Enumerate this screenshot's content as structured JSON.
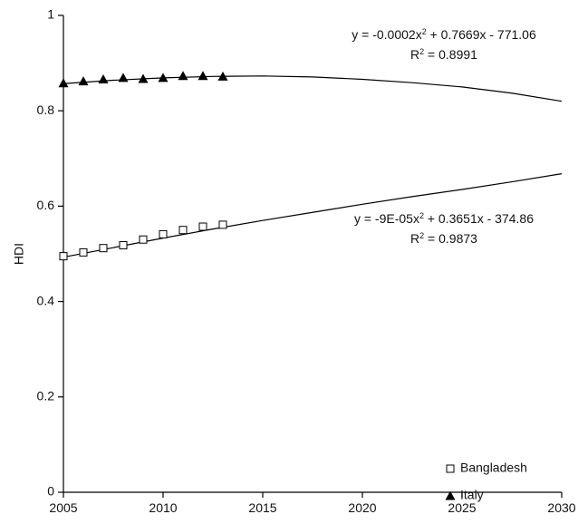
{
  "chart_data": {
    "type": "scatter",
    "y_label": "HDI",
    "xlim": [
      2005,
      2030
    ],
    "xticks": [
      2005,
      2010,
      2015,
      2020,
      2025,
      2030
    ],
    "ylim": [
      0,
      1
    ],
    "yticks": [
      0,
      0.2,
      0.4,
      0.6,
      0.8,
      1
    ],
    "legend_position": "lower right",
    "series": [
      {
        "name": "Bangladesh",
        "marker": "square",
        "color": "#000000",
        "x": [
          2005,
          2006,
          2007,
          2008,
          2009,
          2010,
          2011,
          2012,
          2013
        ],
        "values": [
          0.495,
          0.503,
          0.512,
          0.518,
          0.53,
          0.541,
          0.55,
          0.557,
          0.561
        ]
      },
      {
        "name": "Italy",
        "marker": "triangle",
        "color": "#000000",
        "x": [
          2005,
          2006,
          2007,
          2008,
          2009,
          2010,
          2011,
          2012,
          2013
        ],
        "values": [
          0.858,
          0.862,
          0.866,
          0.869,
          0.867,
          0.869,
          0.873,
          0.873,
          0.872
        ]
      }
    ],
    "trendlines": [
      {
        "x": [
          2005,
          2007.5,
          2010,
          2012.5,
          2015,
          2017.5,
          2020,
          2022.5,
          2025,
          2027.5,
          2030
        ],
        "values": [
          0.493,
          0.513,
          0.533,
          0.552,
          0.57,
          0.587,
          0.604,
          0.62,
          0.635,
          0.651,
          0.668
        ],
        "equation": [
          "y = -9E-05x",
          "2",
          " + 0.3651x - 374.86"
        ],
        "r_squared": [
          "R",
          "2",
          " = 0.9873"
        ]
      },
      {
        "x": [
          2005,
          2007.5,
          2010,
          2012.5,
          2015,
          2017.5,
          2020,
          2022.5,
          2025,
          2027.5,
          2030
        ],
        "values": [
          0.857,
          0.864,
          0.869,
          0.872,
          0.873,
          0.871,
          0.866,
          0.859,
          0.85,
          0.837,
          0.82
        ],
        "equation": [
          "y = -0.0002x",
          "2",
          " + 0.7669x - 771.06"
        ],
        "r_squared": [
          "R",
          "2",
          " = 0.8991"
        ]
      }
    ]
  }
}
